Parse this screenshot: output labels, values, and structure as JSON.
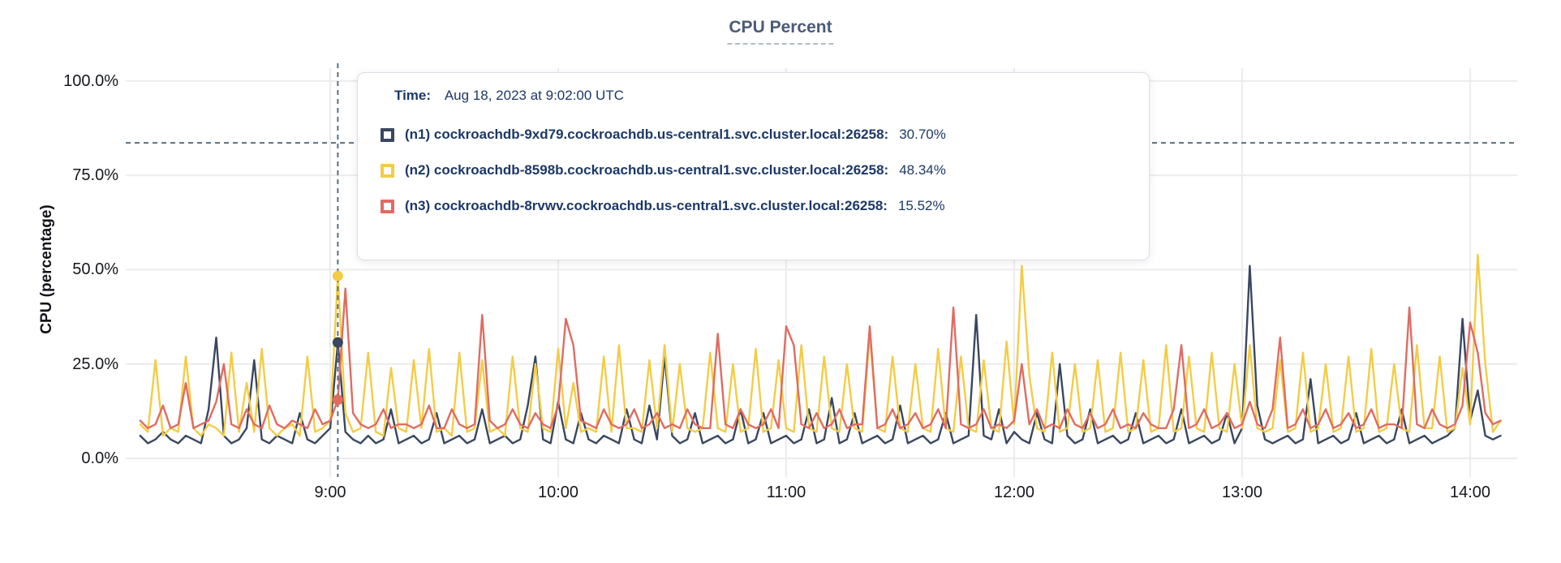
{
  "title": "CPU Percent",
  "y_axis": {
    "label": "CPU (percentage)",
    "ticks": [
      "100.0%",
      "75.0%",
      "50.0%",
      "25.0%",
      "0.0%"
    ],
    "tick_values": [
      100,
      75,
      50,
      25,
      0
    ]
  },
  "x_axis": {
    "ticks": [
      "9:00",
      "10:00",
      "11:00",
      "12:00",
      "13:00",
      "14:00"
    ],
    "tick_minutes": [
      60,
      120,
      180,
      240,
      300,
      360
    ]
  },
  "tooltip": {
    "time_label": "Time:",
    "time_value": "Aug 18, 2023 at 9:02:00 UTC",
    "rows": [
      {
        "series": "n1",
        "label": "(n1) cockroachdb-9xd79.cockroachdb.us-central1.svc.cluster.local:26258:",
        "value": "30.70%",
        "color": "#394760"
      },
      {
        "series": "n2",
        "label": "(n2) cockroachdb-8598b.cockroachdb.us-central1.svc.cluster.local:26258:",
        "value": "48.34%",
        "color": "#f3cc45"
      },
      {
        "series": "n3",
        "label": "(n3) cockroachdb-8rvwv.cockroachdb.us-central1.svc.cluster.local:26258:",
        "value": "15.52%",
        "color": "#df6c62"
      }
    ]
  },
  "colors": {
    "series_n1": "#394760",
    "series_n2": "#f3cc45",
    "series_n3": "#df6c62",
    "gridline": "#ececee",
    "crosshair": "#587083",
    "title": "#4b5a76",
    "tooltip_text": "#1c3866",
    "axis_text": "#15181d"
  },
  "chart_data": {
    "type": "line",
    "title": "CPU Percent",
    "xlabel": "",
    "ylabel": "CPU (percentage)",
    "ylim": [
      0,
      100
    ],
    "y_tick_percent": [
      100,
      75,
      50,
      25,
      0
    ],
    "x_tick_labels": [
      "9:00",
      "10:00",
      "11:00",
      "12:00",
      "13:00",
      "14:00"
    ],
    "grid": true,
    "legend_position": "tooltip-overlay",
    "x_start_minutes_after_0800": 10,
    "x_step_minutes": 2,
    "hover": {
      "time": "Aug 18, 2023 at 9:02:00 UTC",
      "minutes_after_0800": 62,
      "crosshair_y_percent": 83.6,
      "values_percent": {
        "n1": 30.7,
        "n2": 48.34,
        "n3": 15.52
      }
    },
    "series": [
      {
        "name": "(n1) cockroachdb-9xd79.cockroachdb.us-central1.svc.cluster.local:26258",
        "color": "#394760",
        "values": [
          6,
          4,
          5,
          7,
          5,
          4,
          6,
          5,
          4,
          13,
          32,
          6,
          4,
          5,
          8,
          26,
          5,
          4,
          6,
          5,
          4,
          12,
          5,
          4,
          6,
          8,
          30.7,
          7,
          5,
          4,
          6,
          4,
          5,
          13,
          4,
          5,
          6,
          4,
          5,
          12,
          4,
          5,
          6,
          4,
          5,
          13,
          4,
          5,
          6,
          4,
          5,
          14,
          27,
          5,
          4,
          15,
          5,
          4,
          12,
          5,
          4,
          6,
          5,
          4,
          13,
          5,
          4,
          14,
          5,
          27,
          6,
          4,
          5,
          12,
          4,
          5,
          6,
          4,
          5,
          13,
          4,
          5,
          12,
          4,
          5,
          6,
          4,
          5,
          13,
          4,
          5,
          16,
          4,
          5,
          12,
          4,
          5,
          6,
          4,
          5,
          14,
          4,
          5,
          6,
          4,
          5,
          12,
          4,
          5,
          6,
          38,
          6,
          5,
          13,
          4,
          7,
          5,
          4,
          12,
          5,
          4,
          25,
          6,
          4,
          5,
          13,
          4,
          5,
          6,
          4,
          5,
          12,
          4,
          5,
          6,
          4,
          5,
          13,
          4,
          5,
          6,
          4,
          5,
          12,
          4,
          8,
          51,
          14,
          5,
          4,
          5,
          6,
          4,
          5,
          21,
          4,
          5,
          6,
          4,
          5,
          12,
          4,
          5,
          6,
          4,
          5,
          13,
          4,
          5,
          6,
          4,
          5,
          6,
          8,
          37,
          10,
          18,
          6,
          5,
          6
        ]
      },
      {
        "name": "(n2) cockroachdb-8598b.cockroachdb.us-central1.svc.cluster.local:26258",
        "color": "#f3cc45",
        "values": [
          9,
          7,
          26,
          6,
          8,
          7,
          27,
          8,
          6,
          9,
          8,
          6,
          28,
          7,
          20,
          7,
          29,
          8,
          6,
          8,
          9,
          6,
          27,
          7,
          8,
          10,
          48.34,
          12,
          7,
          8,
          28,
          7,
          6,
          24,
          8,
          7,
          26,
          8,
          29,
          7,
          8,
          6,
          28,
          7,
          8,
          26,
          7,
          8,
          6,
          27,
          8,
          7,
          25,
          8,
          7,
          29,
          8,
          20,
          7,
          8,
          7,
          27,
          7,
          30,
          8,
          8,
          7,
          26,
          8,
          30,
          7,
          25,
          8,
          7,
          8,
          28,
          8,
          7,
          25,
          7,
          8,
          29,
          7,
          8,
          26,
          8,
          7,
          30,
          8,
          7,
          27,
          8,
          7,
          25,
          8,
          7,
          33,
          8,
          7,
          27,
          8,
          7,
          25,
          8,
          7,
          29,
          8,
          7,
          27,
          8,
          7,
          26,
          8,
          7,
          31,
          9,
          51,
          22,
          8,
          7,
          28,
          7,
          8,
          25,
          7,
          8,
          26,
          7,
          8,
          28,
          7,
          8,
          26,
          7,
          8,
          30,
          7,
          8,
          27,
          8,
          7,
          28,
          8,
          7,
          25,
          8,
          30,
          8,
          7,
          8,
          26,
          7,
          8,
          28,
          7,
          8,
          25,
          7,
          8,
          27,
          7,
          8,
          29,
          7,
          8,
          25,
          8,
          7,
          30,
          8,
          8,
          27,
          7,
          8,
          24,
          9,
          54,
          25,
          7,
          10
        ]
      },
      {
        "name": "(n3) cockroachdb-8rvwv.cockroachdb.us-central1.svc.cluster.local:26258",
        "color": "#df6c62",
        "values": [
          10,
          8,
          9,
          14,
          8,
          9,
          20,
          8,
          9,
          10,
          15,
          25,
          9,
          8,
          13,
          9,
          8,
          14,
          9,
          8,
          10,
          9,
          8,
          13,
          9,
          10,
          15.52,
          45,
          12,
          9,
          8,
          9,
          13,
          8,
          9,
          9,
          8,
          9,
          14,
          8,
          8,
          13,
          9,
          8,
          9,
          38,
          10,
          8,
          9,
          13,
          9,
          8,
          12,
          9,
          8,
          14,
          37,
          30,
          10,
          9,
          8,
          13,
          9,
          8,
          9,
          13,
          8,
          9,
          12,
          8,
          9,
          8,
          13,
          9,
          8,
          8,
          33,
          9,
          8,
          13,
          9,
          8,
          9,
          13,
          8,
          35,
          30,
          9,
          8,
          12,
          8,
          9,
          13,
          8,
          9,
          9,
          35,
          8,
          9,
          13,
          8,
          9,
          12,
          8,
          9,
          13,
          8,
          40,
          9,
          8,
          9,
          13,
          8,
          9,
          8,
          10,
          25,
          9,
          13,
          8,
          9,
          8,
          13,
          9,
          8,
          12,
          8,
          9,
          13,
          8,
          9,
          8,
          12,
          9,
          8,
          8,
          13,
          30,
          8,
          9,
          13,
          8,
          9,
          12,
          8,
          9,
          15,
          9,
          8,
          13,
          32,
          8,
          9,
          13,
          8,
          9,
          13,
          8,
          9,
          12,
          8,
          9,
          13,
          8,
          9,
          9,
          8,
          40,
          9,
          8,
          13,
          9,
          8,
          9,
          14,
          36,
          28,
          12,
          9,
          10
        ]
      }
    ]
  }
}
